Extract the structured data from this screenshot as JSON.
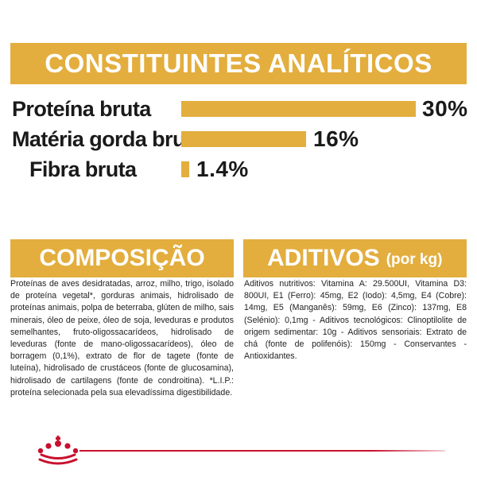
{
  "analytical": {
    "title": "CONSTITUINTES ANALÍTICOS",
    "rows": [
      {
        "label": "Proteína bruta",
        "value": "30%",
        "percent": 30
      },
      {
        "label": "Matéria gorda bruta",
        "value": "16%",
        "percent": 16
      },
      {
        "label": "Fibra bruta",
        "value": "1.4%",
        "percent": 1.4
      }
    ]
  },
  "composition": {
    "title": "COMPOSIÇÃO",
    "text": "Proteínas de aves desidratadas, arroz, milho, trigo, isolado de proteína vegetal*, gorduras animais, hidrolisado de proteínas animais, polpa de beterraba, glúten de milho, sais minerais, óleo de peixe, óleo de soja, leveduras e produtos semelhantes, fruto-oligossacarídeos, hidrolisado de leveduras (fonte de mano-oligossacarídeos), óleo de borragem (0,1%), extrato de flor de tagete (fonte de luteína), hidrolisado de crustáceos (fonte de glucosamina), hidrolisado de cartilagens (fonte de condroitina). *L.I.P.: proteína selecionada pela sua elevadíssima digestibilidade."
  },
  "additives": {
    "title": "ADITIVOS",
    "unit": "(por kg)",
    "text": "Aditivos nutritivos: Vitamina A: 29.500UI, Vitamina D3: 800UI, E1 (Ferro): 45mg, E2 (Iodo): 4,5mg, E4 (Cobre): 14mg, E5 (Manganês): 59mg, E6 (Zinco): 137mg, E8 (Selénio): 0,1mg - Aditivos tecnológicos: Clinoptilolite de origem sedimentar: 10g - Aditivos sensoriais: Extrato de chá (fonte de polifenóis): 150mg - Conservantes - Antioxidantes."
  },
  "colors": {
    "accent": "#e3ae3e",
    "brand_red": "#c8102e"
  },
  "logo": {
    "icon": "crown-icon"
  }
}
